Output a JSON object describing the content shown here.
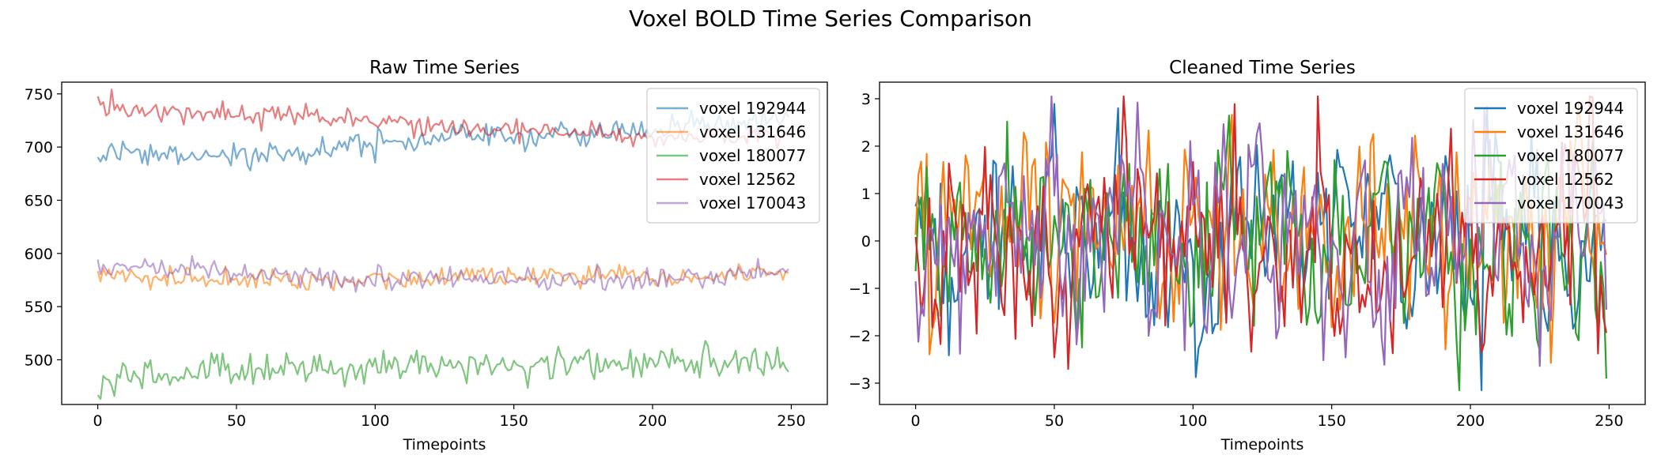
{
  "figure": {
    "title": "Voxel BOLD Time Series Comparison"
  },
  "chart_data": [
    {
      "type": "line",
      "title": "Raw Time Series",
      "xlabel": "Timepoints",
      "ylabel": "",
      "xlim": [
        -13,
        263
      ],
      "ylim": [
        458,
        761
      ],
      "xticks": [
        0,
        50,
        100,
        150,
        200,
        250
      ],
      "yticks": [
        500,
        550,
        600,
        650,
        700,
        750
      ],
      "legend": "top-right",
      "grid": false,
      "series_alpha": 0.6,
      "n_points": 250,
      "series": [
        {
          "name": "voxel 192944",
          "color": "#1f77b4",
          "noise": 6,
          "anchors": [
            [
              0,
              693
            ],
            [
              25,
              692
            ],
            [
              50,
              690
            ],
            [
              75,
              694
            ],
            [
              100,
              702
            ],
            [
              125,
              705
            ],
            [
              150,
              710
            ],
            [
              175,
              713
            ],
            [
              200,
              718
            ],
            [
              225,
              722
            ],
            [
              249,
              726
            ]
          ]
        },
        {
          "name": "voxel 131646",
          "color": "#ff7f0e",
          "noise": 5,
          "anchors": [
            [
              0,
              582
            ],
            [
              25,
              576
            ],
            [
              50,
              577
            ],
            [
              75,
              574
            ],
            [
              100,
              575
            ],
            [
              125,
              577
            ],
            [
              150,
              578
            ],
            [
              175,
              579
            ],
            [
              200,
              576
            ],
            [
              225,
              578
            ],
            [
              249,
              584
            ]
          ]
        },
        {
          "name": "voxel 180077",
          "color": "#2ca02c",
          "noise": 8,
          "anchors": [
            [
              0,
              478
            ],
            [
              25,
              487
            ],
            [
              50,
              490
            ],
            [
              75,
              489
            ],
            [
              100,
              494
            ],
            [
              125,
              496
            ],
            [
              150,
              494
            ],
            [
              175,
              497
            ],
            [
              200,
              498
            ],
            [
              225,
              499
            ],
            [
              249,
              498
            ]
          ]
        },
        {
          "name": "voxel 12562",
          "color": "#d62728",
          "noise": 5,
          "anchors": [
            [
              0,
              740
            ],
            [
              25,
              734
            ],
            [
              50,
              731
            ],
            [
              75,
              727
            ],
            [
              100,
              723
            ],
            [
              125,
              719
            ],
            [
              150,
              717
            ],
            [
              175,
              713
            ],
            [
              200,
              710
            ],
            [
              225,
              710
            ],
            [
              249,
              707
            ]
          ]
        },
        {
          "name": "voxel 170043",
          "color": "#9467bd",
          "noise": 5,
          "anchors": [
            [
              0,
              588
            ],
            [
              25,
              586
            ],
            [
              50,
              581
            ],
            [
              75,
              578
            ],
            [
              100,
              575
            ],
            [
              125,
              575
            ],
            [
              150,
              574
            ],
            [
              175,
              575
            ],
            [
              200,
              575
            ],
            [
              225,
              578
            ],
            [
              249,
              583
            ]
          ]
        }
      ]
    },
    {
      "type": "line",
      "title": "Cleaned Time Series",
      "xlabel": "Timepoints",
      "ylabel": "",
      "xlim": [
        -13,
        263
      ],
      "ylim": [
        -3.45,
        3.35
      ],
      "xticks": [
        0,
        50,
        100,
        150,
        200,
        250
      ],
      "yticks": [
        -3,
        -2,
        -1,
        0,
        1,
        2,
        3
      ],
      "legend": "top-right",
      "grid": false,
      "series_alpha": 1,
      "n_points": 250,
      "series": [
        {
          "name": "voxel 192944",
          "color": "#1f77b4",
          "noise": 1.0
        },
        {
          "name": "voxel 131646",
          "color": "#ff7f0e",
          "noise": 1.0
        },
        {
          "name": "voxel 180077",
          "color": "#2ca02c",
          "noise": 1.0
        },
        {
          "name": "voxel 12562",
          "color": "#d62728",
          "noise": 1.0
        },
        {
          "name": "voxel 170043",
          "color": "#9467bd",
          "noise": 1.0
        }
      ]
    }
  ]
}
